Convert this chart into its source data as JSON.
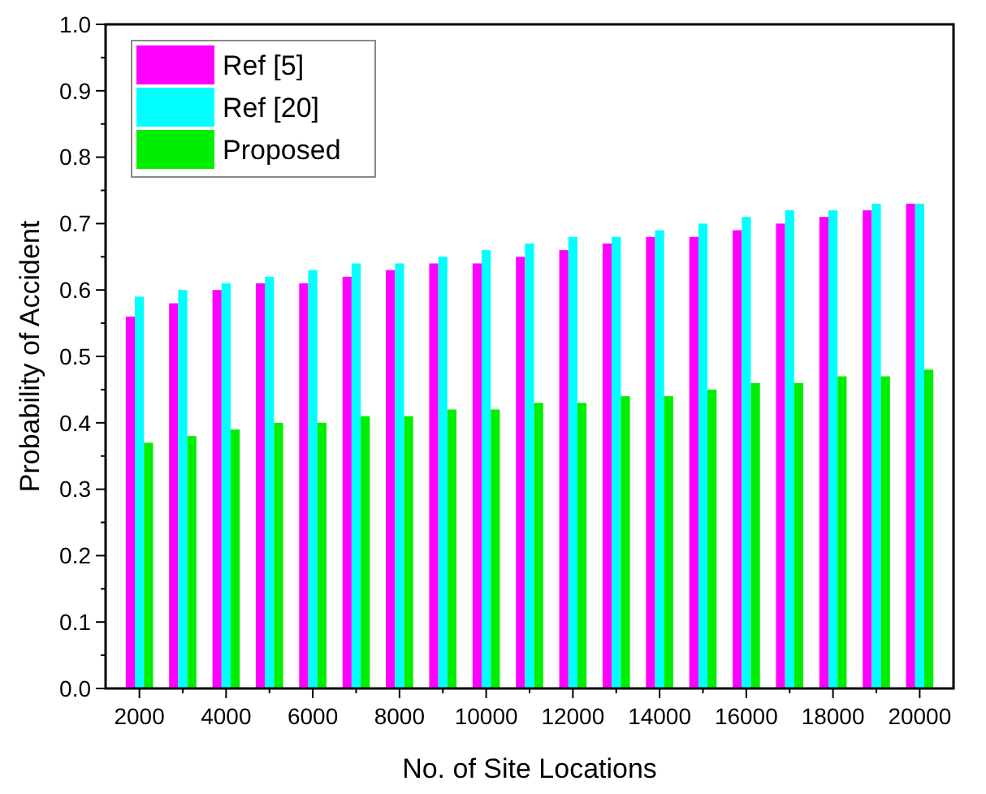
{
  "chart_data": {
    "type": "bar",
    "xlabel": "No. of Site Locations",
    "ylabel": "Probability of Accident",
    "categories": [
      "2000",
      null,
      "4000",
      null,
      "6000",
      null,
      "8000",
      null,
      "10000",
      null,
      "12000",
      null,
      "14000",
      null,
      "16000",
      null,
      "18000",
      null,
      "20000"
    ],
    "series": [
      {
        "name": "Ref [5]",
        "color": "#ff00ff",
        "values": [
          0.56,
          0.58,
          0.6,
          0.61,
          0.61,
          0.62,
          0.63,
          0.64,
          0.64,
          0.65,
          0.66,
          0.67,
          0.68,
          0.68,
          0.69,
          0.7,
          0.71,
          0.72,
          0.73
        ]
      },
      {
        "name": "Ref [20]",
        "color": "#00ffff",
        "values": [
          0.59,
          0.6,
          0.61,
          0.62,
          0.63,
          0.64,
          0.64,
          0.65,
          0.66,
          0.67,
          0.68,
          0.68,
          0.69,
          0.7,
          0.71,
          0.72,
          0.72,
          0.73,
          0.73
        ]
      },
      {
        "name": "Proposed",
        "color": "#00ee00",
        "values": [
          0.37,
          0.38,
          0.39,
          0.4,
          0.4,
          0.41,
          0.41,
          0.42,
          0.42,
          0.43,
          0.43,
          0.44,
          0.44,
          0.45,
          0.46,
          0.46,
          0.47,
          0.47,
          0.48
        ]
      }
    ],
    "ylim": [
      0,
      1
    ],
    "yticks": [
      "0.0",
      {
        "value": 0.05,
        "label": null
      },
      {
        "value": 0.1,
        "label": "0.1"
      },
      {
        "value": 0.15,
        "label": null
      },
      {
        "value": 0.2,
        "label": "0.2"
      },
      {
        "value": 0.25,
        "label": null
      },
      {
        "value": 0.3,
        "label": "0.3"
      },
      {
        "value": 0.35,
        "label": null
      },
      {
        "value": 0.4,
        "label": "0.4"
      },
      {
        "value": 0.45,
        "label": null
      },
      {
        "value": 0.5,
        "label": "0.5"
      },
      {
        "value": 0.55,
        "label": null
      },
      {
        "value": 0.6,
        "label": "0.6"
      },
      {
        "value": 0.65,
        "label": null
      },
      {
        "value": 0.7,
        "label": "0.7"
      },
      {
        "value": 0.75,
        "label": null
      },
      {
        "value": 0.8,
        "label": "0.8"
      },
      {
        "value": 0.85,
        "label": null
      },
      {
        "value": 0.9,
        "label": "0.9"
      },
      {
        "value": 0.95,
        "label": null
      },
      {
        "value": 1,
        "label": "1.0"
      }
    ],
    "legend": "top left",
    "grid": false
  }
}
